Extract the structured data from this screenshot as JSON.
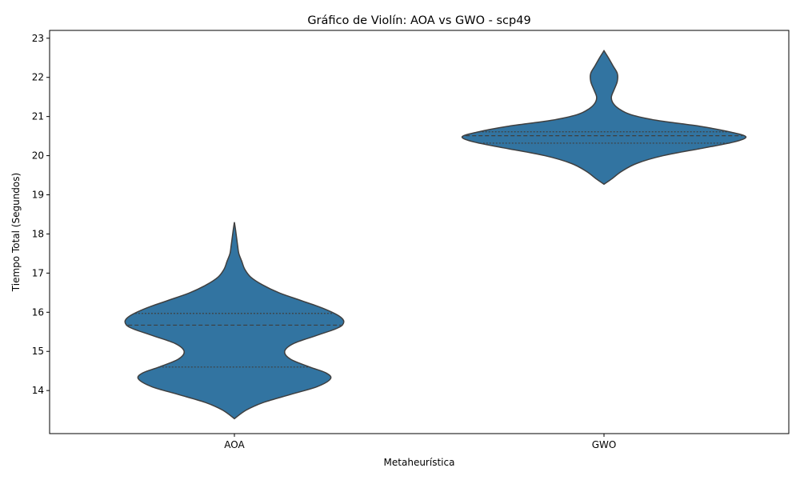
{
  "chart_data": {
    "type": "violin",
    "title": "Gráfico de Violín: AOA vs GWO - scp49",
    "xlabel": "Metaheurística",
    "ylabel": "Tiempo Total (Segundos)",
    "categories": [
      "AOA",
      "GWO"
    ],
    "ylim": [
      12.9,
      23.2
    ],
    "yticks": [
      14,
      15,
      16,
      17,
      18,
      19,
      20,
      21,
      22,
      23
    ],
    "grid": false,
    "legend": "none",
    "inner": "quartile",
    "color": "#3274a1",
    "edge_color": "#3f3f3f",
    "violins": [
      {
        "category": "AOA",
        "q1": 14.6,
        "median": 15.67,
        "q3": 15.97,
        "density": [
          [
            13.28,
            0.0
          ],
          [
            13.5,
            0.08
          ],
          [
            13.7,
            0.2
          ],
          [
            13.9,
            0.38
          ],
          [
            14.1,
            0.56
          ],
          [
            14.3,
            0.65
          ],
          [
            14.45,
            0.62
          ],
          [
            14.6,
            0.51
          ],
          [
            14.8,
            0.38
          ],
          [
            15.0,
            0.34
          ],
          [
            15.2,
            0.4
          ],
          [
            15.4,
            0.55
          ],
          [
            15.6,
            0.7
          ],
          [
            15.75,
            0.74
          ],
          [
            15.9,
            0.71
          ],
          [
            16.1,
            0.6
          ],
          [
            16.3,
            0.45
          ],
          [
            16.5,
            0.3
          ],
          [
            16.7,
            0.19
          ],
          [
            16.9,
            0.11
          ],
          [
            17.1,
            0.07
          ],
          [
            17.3,
            0.05
          ],
          [
            17.5,
            0.03
          ],
          [
            17.7,
            0.022
          ],
          [
            17.9,
            0.015
          ],
          [
            18.1,
            0.008
          ],
          [
            18.3,
            0.0
          ]
        ]
      },
      {
        "category": "GWO",
        "q1": 20.32,
        "median": 20.51,
        "q3": 20.61,
        "density": [
          [
            19.27,
            0.0
          ],
          [
            19.4,
            0.05
          ],
          [
            19.6,
            0.12
          ],
          [
            19.8,
            0.22
          ],
          [
            20.0,
            0.4
          ],
          [
            20.2,
            0.68
          ],
          [
            20.35,
            0.88
          ],
          [
            20.48,
            0.96
          ],
          [
            20.6,
            0.86
          ],
          [
            20.75,
            0.65
          ],
          [
            20.9,
            0.36
          ],
          [
            21.05,
            0.18
          ],
          [
            21.2,
            0.1
          ],
          [
            21.35,
            0.06
          ],
          [
            21.5,
            0.05
          ],
          [
            21.7,
            0.07
          ],
          [
            21.9,
            0.09
          ],
          [
            22.1,
            0.09
          ],
          [
            22.3,
            0.06
          ],
          [
            22.5,
            0.03
          ],
          [
            22.68,
            0.0
          ]
        ]
      }
    ]
  }
}
